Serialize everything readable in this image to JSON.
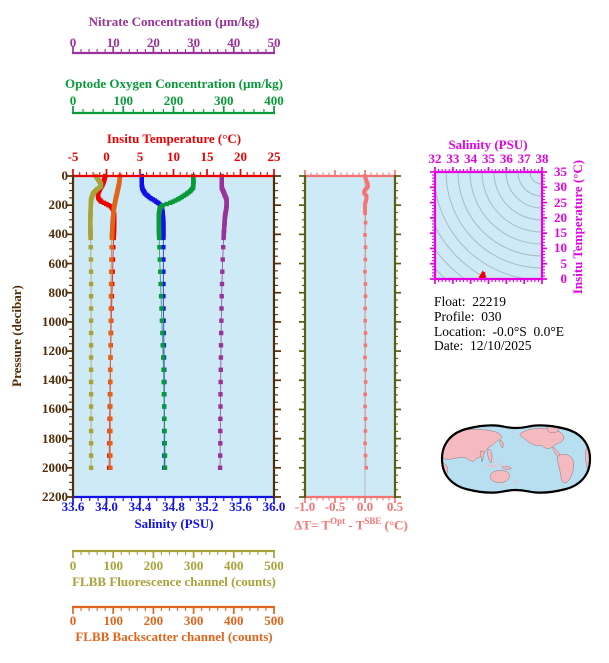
{
  "colors": {
    "nitrate": "#993399",
    "oxygen": "#089a38",
    "temperature": "#ee0000",
    "pressure": "#512d0a",
    "salinity": "#1111e8",
    "fluorescence": "#a8a23a",
    "backscatter": "#e0651c",
    "delta_t": "#f87474",
    "delta_t_frame": "#5c5c10",
    "ts_frame": "#e303e3",
    "plot_bg": "#cdeaf6",
    "contour": "#a8bcc4",
    "zero_line": "#b4bcc0",
    "map_ocean": "#b8dff0",
    "map_land": "#f5bac0",
    "map_outline": "#000000",
    "info_text": "#000000",
    "ts_point": "#ee0000"
  },
  "figure": {
    "info": {
      "float_label": "Float:",
      "float_value": "22219",
      "profile_label": "Profile:",
      "profile_value": "030",
      "location_label": "Location:",
      "location_value": "-0.0°S  0.0°E",
      "date_label": "Date:",
      "date_value": "12/10/2025"
    }
  },
  "chart_data": [
    {
      "id": "profile_panel",
      "type": "line",
      "y_axis": {
        "label": "Pressure (decibar)",
        "min": 0,
        "max": 2200,
        "tick_labels": [
          "0",
          "200",
          "400",
          "600",
          "800",
          "1000",
          "1200",
          "1400",
          "1600",
          "1800",
          "2000",
          "2200"
        ],
        "minor_divisions": 4,
        "color": "#512d0a"
      },
      "x_axes": [
        {
          "id": "nitrate",
          "label": "Nitrate Concentration (µm/kg)",
          "min": 0,
          "max": 50,
          "tick_labels": [
            "0",
            "10",
            "20",
            "30",
            "40",
            "50"
          ],
          "minor_divisions": 5,
          "color": "#993399"
        },
        {
          "id": "oxygen",
          "label": "Optode Oxygen Concentration (µm/kg)",
          "min": 0,
          "max": 400,
          "tick_labels": [
            "0",
            "100",
            "200",
            "300",
            "400"
          ],
          "minor_divisions": 5,
          "color": "#089a38"
        },
        {
          "id": "temperature",
          "label": "Insitu Temperature (°C)",
          "min": -5,
          "max": 25,
          "tick_labels": [
            "-5",
            "0",
            "5",
            "10",
            "15",
            "20",
            "25"
          ],
          "minor_divisions": 5,
          "color": "#ee0000"
        },
        {
          "id": "salinity",
          "label": "Salinity (PSU)",
          "min": 33.6,
          "max": 36.0,
          "tick_labels": [
            "33.6",
            "34.0",
            "34.4",
            "34.8",
            "35.2",
            "35.6",
            "36.0"
          ],
          "minor_divisions": 4,
          "color": "#1111e8"
        },
        {
          "id": "fluorescence",
          "label": "FLBB Fluorescence channel (counts)",
          "min": 0,
          "max": 500,
          "tick_labels": [
            "0",
            "100",
            "200",
            "300",
            "400",
            "500"
          ],
          "minor_divisions": 5,
          "color": "#a8a23a"
        },
        {
          "id": "backscatter",
          "label": "FLBB Backscatter channel (counts)",
          "min": 0,
          "max": 500,
          "tick_labels": [
            "0",
            "100",
            "200",
            "300",
            "400",
            "500"
          ],
          "minor_divisions": 5,
          "color": "#e0651c"
        }
      ],
      "series": [
        {
          "name": "Insitu Temperature",
          "axis": "temperature",
          "color": "#ee0000",
          "points": [
            [
              -0.2,
              0
            ],
            [
              -0.35,
              30
            ],
            [
              -0.6,
              60
            ],
            [
              -1.0,
              90
            ],
            [
              -1.25,
              120
            ],
            [
              -1.25,
              150
            ],
            [
              -0.8,
              175
            ],
            [
              0.1,
              195
            ],
            [
              0.7,
              210
            ],
            [
              1.05,
              235
            ],
            [
              1.15,
              270
            ],
            [
              1.15,
              320
            ],
            [
              1.1,
              400
            ],
            [
              1.0,
              500
            ],
            [
              0.95,
              600
            ],
            [
              0.9,
              700
            ],
            [
              0.82,
              800
            ],
            [
              0.76,
              900
            ],
            [
              0.7,
              1000
            ],
            [
              0.66,
              1100
            ],
            [
              0.62,
              1200
            ],
            [
              0.58,
              1300
            ],
            [
              0.55,
              1400
            ],
            [
              0.52,
              1500
            ],
            [
              0.49,
              1600
            ],
            [
              0.46,
              1700
            ],
            [
              0.44,
              1800
            ],
            [
              0.42,
              1900
            ],
            [
              0.4,
              2000
            ]
          ]
        },
        {
          "name": "Salinity",
          "axis": "salinity",
          "color": "#1111e8",
          "points": [
            [
              34.42,
              0
            ],
            [
              34.42,
              60
            ],
            [
              34.43,
              90
            ],
            [
              34.46,
              120
            ],
            [
              34.52,
              150
            ],
            [
              34.58,
              170
            ],
            [
              34.63,
              190
            ],
            [
              34.66,
              215
            ],
            [
              34.67,
              250
            ],
            [
              34.68,
              320
            ],
            [
              34.68,
              900
            ],
            [
              34.69,
              1400
            ],
            [
              34.69,
              2000
            ]
          ]
        },
        {
          "name": "Optode Oxygen",
          "axis": "oxygen",
          "color": "#089a38",
          "points": [
            [
              239,
              0
            ],
            [
              240,
              40
            ],
            [
              239,
              80
            ],
            [
              233,
              105
            ],
            [
              223,
              130
            ],
            [
              209,
              160
            ],
            [
              193,
              185
            ],
            [
              179,
              200
            ],
            [
              173,
              220
            ],
            [
              171,
              260
            ],
            [
              171,
              350
            ],
            [
              172,
              500
            ],
            [
              174,
              700
            ],
            [
              176,
              900
            ],
            [
              178,
              1100
            ],
            [
              180,
              1300
            ],
            [
              181,
              1500
            ],
            [
              182,
              1700
            ],
            [
              183,
              1900
            ],
            [
              183,
              2000
            ]
          ]
        },
        {
          "name": "Nitrate",
          "axis": "nitrate",
          "color": "#993399",
          "points": [
            [
              37.0,
              0
            ],
            [
              37.0,
              80
            ],
            [
              37.6,
              120
            ],
            [
              38.2,
              160
            ],
            [
              38.2,
              210
            ],
            [
              37.8,
              280
            ],
            [
              37.5,
              400
            ],
            [
              37.2,
              600
            ],
            [
              37.0,
              800
            ],
            [
              36.9,
              1000
            ],
            [
              36.8,
              1200
            ],
            [
              36.7,
              1500
            ],
            [
              36.6,
              2000
            ]
          ]
        },
        {
          "name": "FLBB Fluorescence",
          "axis": "fluorescence",
          "color": "#a8a23a",
          "points": [
            [
              57,
              0
            ],
            [
              63,
              25
            ],
            [
              70,
              55
            ],
            [
              68,
              75
            ],
            [
              58,
              95
            ],
            [
              50,
              120
            ],
            [
              45,
              160
            ],
            [
              44,
              220
            ],
            [
              43,
              320
            ],
            [
              44,
              450
            ],
            [
              45,
              700
            ],
            [
              45,
              2000
            ]
          ]
        },
        {
          "name": "FLBB Backscatter",
          "axis": "backscatter",
          "color": "#e0651c",
          "points": [
            [
              117,
              0
            ],
            [
              115,
              50
            ],
            [
              111,
              100
            ],
            [
              106,
              160
            ],
            [
              102,
              220
            ],
            [
              99,
              300
            ],
            [
              97,
              400
            ],
            [
              95,
              600
            ],
            [
              94,
              900
            ],
            [
              93,
              1300
            ],
            [
              93,
              2000
            ]
          ]
        }
      ]
    },
    {
      "id": "delta_t_panel",
      "type": "line",
      "x_axis": {
        "label_parts": {
          "pre": "ΔT= T",
          "sup1": "Opt",
          "mid": " - T",
          "sup2": "SBE",
          "post": " (°C)"
        },
        "min": -1.0,
        "max": 0.5,
        "tick_labels": [
          "-1.0",
          "-0.5",
          "0.0",
          "0.5"
        ],
        "minor_divisions": 5,
        "color": "#f87474"
      },
      "series": {
        "name": "Temperature difference",
        "color": "#f87474",
        "points": [
          [
            0,
            0
          ],
          [
            0.02,
            30
          ],
          [
            0.05,
            60
          ],
          [
            0.05,
            75
          ],
          [
            0.0,
            95
          ],
          [
            -0.02,
            115
          ],
          [
            0.03,
            140
          ],
          [
            0.02,
            165
          ],
          [
            0.0,
            190
          ],
          [
            0.0,
            240
          ],
          [
            0.01,
            300
          ],
          [
            0.0,
            400
          ],
          [
            0.01,
            500
          ],
          [
            0.0,
            650
          ],
          [
            0.01,
            800
          ],
          [
            0.0,
            950
          ],
          [
            0.01,
            1100
          ],
          [
            0.0,
            1250
          ],
          [
            0.01,
            1400
          ],
          [
            0.0,
            1550
          ],
          [
            0.01,
            1700
          ],
          [
            0.0,
            1850
          ],
          [
            0.02,
            2000
          ]
        ]
      },
      "zero_line": true
    },
    {
      "id": "ts_panel",
      "type": "scatter",
      "x_axis": {
        "label": "Salinity (PSU)",
        "min": 32,
        "max": 38,
        "tick_labels": [
          "32",
          "33",
          "34",
          "35",
          "36",
          "37",
          "38"
        ],
        "minor_divisions": 5,
        "color": "#e303e3"
      },
      "y_axis": {
        "label": "Insitu Temperature (°C)",
        "min": 0,
        "max": 35,
        "tick_labels": [
          "0",
          "5",
          "10",
          "15",
          "20",
          "25",
          "30",
          "35"
        ],
        "minor_divisions": 5,
        "color": "#e303e3"
      },
      "contours": {
        "style": "density isolines",
        "count": 14,
        "color": "#a8bcc4"
      },
      "points": [
        [
          34.55,
          0.3
        ],
        [
          34.62,
          0.6
        ],
        [
          34.68,
          1.1
        ],
        [
          34.72,
          1.7
        ],
        [
          34.66,
          0.4
        ],
        [
          34.7,
          0.8
        ]
      ],
      "point_color": "#ee0000"
    },
    {
      "id": "location_map",
      "type": "map",
      "description": "Pacific-centered world map"
    }
  ]
}
